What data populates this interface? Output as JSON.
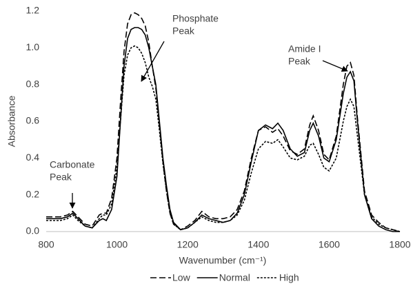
{
  "chart_data": {
    "type": "line",
    "x_label": "Wavenumber (cm⁻¹)",
    "y_label": "Absorbance",
    "x": [
      800,
      820,
      840,
      860,
      875,
      890,
      910,
      930,
      950,
      960,
      970,
      985,
      1000,
      1010,
      1020,
      1030,
      1040,
      1050,
      1060,
      1070,
      1080,
      1090,
      1100,
      1110,
      1120,
      1130,
      1140,
      1150,
      1160,
      1180,
      1200,
      1220,
      1240,
      1260,
      1280,
      1300,
      1320,
      1340,
      1360,
      1380,
      1400,
      1420,
      1440,
      1455,
      1470,
      1490,
      1510,
      1530,
      1545,
      1555,
      1570,
      1585,
      1600,
      1620,
      1640,
      1650,
      1660,
      1670,
      1680,
      1700,
      1720,
      1740,
      1760,
      1780,
      1800
    ],
    "series": [
      {
        "name": "Low",
        "color": "#000000",
        "dash": "long",
        "values": [
          0.08,
          0.08,
          0.08,
          0.09,
          0.11,
          0.08,
          0.04,
          0.03,
          0.09,
          0.1,
          0.1,
          0.18,
          0.4,
          0.7,
          0.98,
          1.13,
          1.18,
          1.19,
          1.18,
          1.16,
          1.12,
          1.03,
          0.9,
          0.78,
          0.58,
          0.38,
          0.22,
          0.1,
          0.04,
          0.01,
          0.03,
          0.06,
          0.11,
          0.08,
          0.07,
          0.07,
          0.08,
          0.12,
          0.22,
          0.4,
          0.55,
          0.57,
          0.54,
          0.56,
          0.52,
          0.44,
          0.42,
          0.45,
          0.58,
          0.63,
          0.55,
          0.42,
          0.39,
          0.52,
          0.8,
          0.9,
          0.92,
          0.85,
          0.62,
          0.22,
          0.09,
          0.05,
          0.02,
          0.01,
          0
        ]
      },
      {
        "name": "Normal",
        "color": "#000000",
        "dash": "solid",
        "values": [
          0.07,
          0.07,
          0.07,
          0.08,
          0.1,
          0.07,
          0.03,
          0.02,
          0.06,
          0.07,
          0.06,
          0.12,
          0.3,
          0.6,
          0.9,
          1.05,
          1.1,
          1.11,
          1.11,
          1.1,
          1.07,
          1.0,
          0.9,
          0.8,
          0.6,
          0.4,
          0.25,
          0.12,
          0.05,
          0.01,
          0.02,
          0.05,
          0.09,
          0.07,
          0.06,
          0.05,
          0.06,
          0.1,
          0.2,
          0.38,
          0.55,
          0.58,
          0.56,
          0.59,
          0.55,
          0.45,
          0.41,
          0.43,
          0.55,
          0.59,
          0.52,
          0.4,
          0.38,
          0.5,
          0.75,
          0.84,
          0.87,
          0.82,
          0.6,
          0.2,
          0.07,
          0.03,
          0.01,
          0,
          0
        ]
      },
      {
        "name": "High",
        "color": "#000000",
        "dash": "short",
        "values": [
          0.06,
          0.06,
          0.06,
          0.07,
          0.09,
          0.06,
          0.03,
          0.02,
          0.07,
          0.09,
          0.09,
          0.15,
          0.35,
          0.6,
          0.85,
          0.96,
          1.0,
          1.01,
          1.0,
          0.97,
          0.92,
          0.84,
          0.79,
          0.72,
          0.55,
          0.37,
          0.22,
          0.1,
          0.04,
          0.01,
          0.02,
          0.05,
          0.08,
          0.06,
          0.05,
          0.05,
          0.06,
          0.09,
          0.17,
          0.32,
          0.45,
          0.49,
          0.48,
          0.5,
          0.46,
          0.4,
          0.39,
          0.41,
          0.47,
          0.48,
          0.42,
          0.35,
          0.33,
          0.4,
          0.6,
          0.68,
          0.72,
          0.68,
          0.52,
          0.2,
          0.08,
          0.04,
          0.02,
          0.01,
          0
        ]
      }
    ],
    "xlim": [
      800,
      1800
    ],
    "xticks": [
      800,
      1000,
      1200,
      1400,
      1600,
      1800
    ],
    "ylim": [
      0,
      1.2
    ],
    "yticks": [
      {
        "value": 0,
        "label": "0.0"
      },
      0.2,
      0.4,
      0.6,
      0.8,
      {
        "value": 1,
        "label": "1.0"
      },
      1.2
    ],
    "grid": false,
    "legend": "bottom",
    "annotations": [
      {
        "text": [
          "Carbonate",
          "Peak"
        ]
      },
      {
        "text": [
          "Phosphate",
          "Peak"
        ]
      },
      {
        "text": [
          "Amide I",
          "Peak"
        ]
      }
    ]
  }
}
